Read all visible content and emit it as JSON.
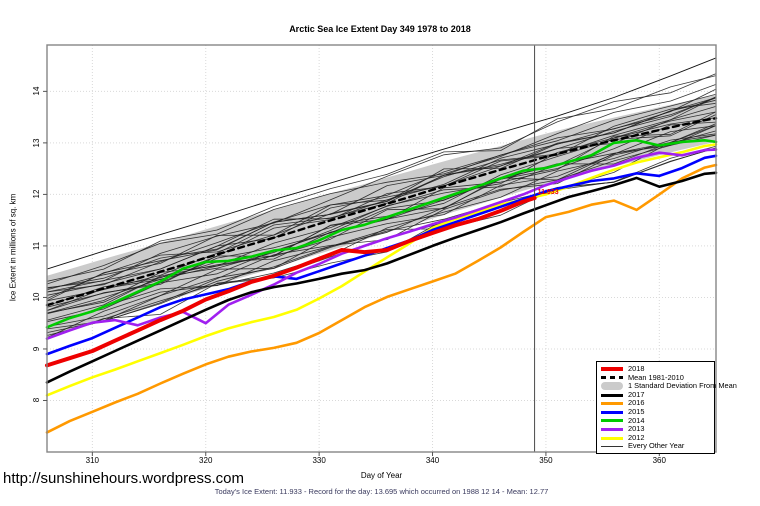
{
  "title": "Arctic Sea Ice Extent Day 349 1978 to 2018",
  "axes": {
    "x_label": "Day of Year",
    "y_label": "Ice Extent in millions of sq. km",
    "x_ticks": [
      310,
      320,
      330,
      340,
      350,
      360
    ],
    "y_ticks": [
      8,
      9,
      10,
      11,
      12,
      13,
      14
    ]
  },
  "annotation": {
    "day": 349,
    "value_label": "11.933",
    "color": "#ee0000"
  },
  "footer": {
    "url": "http://sunshinehours.wordpress.com",
    "note": "Today's Ice Extent: 11.933  - Record for the day: 13.695 which occurred on 1988 12 14  - Mean: 12.77"
  },
  "legend": {
    "items": [
      {
        "label": "2018",
        "color": "#ee0000",
        "type": "line",
        "thickness": 4
      },
      {
        "label": "Mean 1981-2010",
        "color": "#000000",
        "type": "dashed",
        "thickness": 3
      },
      {
        "label": "1 Standard Deviation From Mean",
        "color": "#cbcbcb",
        "type": "band",
        "thickness": 8
      },
      {
        "label": "2017",
        "color": "#000000",
        "type": "line",
        "thickness": 3
      },
      {
        "label": "2016",
        "color": "#ff9900",
        "type": "line",
        "thickness": 3
      },
      {
        "label": "2015",
        "color": "#0000ff",
        "type": "line",
        "thickness": 3
      },
      {
        "label": "2014",
        "color": "#00cc00",
        "type": "line",
        "thickness": 3
      },
      {
        "label": "2013",
        "color": "#a020f0",
        "type": "line",
        "thickness": 3
      },
      {
        "label": "2012",
        "color": "#ffff00",
        "type": "line",
        "thickness": 3
      },
      {
        "label": "Every Other Year",
        "color": "#333333",
        "type": "line",
        "thickness": 1
      }
    ]
  },
  "chart_data": {
    "type": "line",
    "title": "Arctic Sea Ice Extent Day 349 1978 to 2018",
    "xlabel": "Day of Year",
    "ylabel": "Ice Extent in millions of sq. km",
    "x_domain": [
      306,
      365
    ],
    "y_domain": [
      7.0,
      14.9
    ],
    "grid": "dotted",
    "legend_position": "bottom-right",
    "marker_day": 349,
    "x": [
      306,
      308,
      310,
      312,
      314,
      316,
      318,
      320,
      322,
      324,
      326,
      328,
      330,
      332,
      334,
      336,
      338,
      340,
      342,
      344,
      346,
      348,
      350,
      352,
      354,
      356,
      358,
      360,
      362,
      364,
      365
    ],
    "band": {
      "name": "1 Standard Deviation From Mean",
      "color": "#cbcbcb",
      "upper": [
        10.42,
        10.55,
        10.68,
        10.81,
        10.93,
        11.06,
        11.19,
        11.32,
        11.45,
        11.57,
        11.7,
        11.82,
        11.96,
        12.08,
        12.2,
        12.33,
        12.45,
        12.58,
        12.7,
        12.82,
        12.94,
        13.06,
        13.18,
        13.29,
        13.39,
        13.49,
        13.59,
        13.69,
        13.79,
        13.88,
        13.93
      ],
      "lower": [
        9.23,
        9.36,
        9.5,
        9.63,
        9.76,
        9.9,
        10.03,
        10.17,
        10.31,
        10.44,
        10.57,
        10.71,
        10.85,
        10.98,
        11.12,
        11.26,
        11.39,
        11.53,
        11.67,
        11.8,
        11.94,
        12.07,
        12.2,
        12.32,
        12.43,
        12.54,
        12.65,
        12.76,
        12.87,
        12.97,
        13.02
      ]
    },
    "series": [
      {
        "name": "2018",
        "color": "#ee0000",
        "width": 4,
        "z": 10,
        "x": [
          306,
          308,
          310,
          312,
          314,
          316,
          318,
          320,
          322,
          324,
          326,
          328,
          330,
          332,
          334,
          336,
          338,
          340,
          342,
          344,
          346,
          348,
          349
        ],
        "values": [
          8.68,
          8.82,
          8.96,
          9.16,
          9.36,
          9.56,
          9.74,
          9.96,
          10.12,
          10.3,
          10.42,
          10.58,
          10.75,
          10.92,
          10.88,
          10.92,
          11.1,
          11.25,
          11.4,
          11.52,
          11.68,
          11.86,
          11.93
        ]
      },
      {
        "name": "Mean 1981-2010",
        "color": "#000000",
        "width": 2.4,
        "dash": "6,4.5",
        "z": 0,
        "values": [
          9.85,
          9.98,
          10.11,
          10.24,
          10.37,
          10.5,
          10.63,
          10.77,
          10.9,
          11.03,
          11.16,
          11.29,
          11.43,
          11.56,
          11.69,
          11.82,
          11.95,
          12.09,
          12.22,
          12.35,
          12.48,
          12.6,
          12.73,
          12.84,
          12.95,
          13.05,
          13.15,
          13.25,
          13.35,
          13.44,
          13.48
        ]
      },
      {
        "name": "2017",
        "color": "#000000",
        "width": 2.6,
        "z": 6,
        "values": [
          8.35,
          8.56,
          8.76,
          8.96,
          9.16,
          9.36,
          9.56,
          9.76,
          9.95,
          10.1,
          10.2,
          10.27,
          10.36,
          10.46,
          10.53,
          10.66,
          10.83,
          11.0,
          11.16,
          11.31,
          11.46,
          11.63,
          11.79,
          11.95,
          12.06,
          12.18,
          12.32,
          12.15,
          12.26,
          12.4,
          12.42
        ]
      },
      {
        "name": "2016",
        "color": "#ff9900",
        "width": 2.6,
        "z": 5,
        "values": [
          7.38,
          7.6,
          7.78,
          7.96,
          8.13,
          8.33,
          8.52,
          8.7,
          8.85,
          8.95,
          9.02,
          9.12,
          9.31,
          9.56,
          9.81,
          10.01,
          10.16,
          10.31,
          10.46,
          10.71,
          10.97,
          11.27,
          11.56,
          11.66,
          11.8,
          11.88,
          11.7,
          12.0,
          12.31,
          12.52,
          12.57
        ]
      },
      {
        "name": "2015",
        "color": "#0000ff",
        "width": 2.6,
        "z": 2,
        "values": [
          8.9,
          9.06,
          9.21,
          9.41,
          9.61,
          9.81,
          9.96,
          10.06,
          10.16,
          10.31,
          10.41,
          10.36,
          10.51,
          10.66,
          10.81,
          10.96,
          11.11,
          11.31,
          11.46,
          11.61,
          11.76,
          11.91,
          12.06,
          12.16,
          12.26,
          12.31,
          12.41,
          12.36,
          12.51,
          12.71,
          12.75
        ]
      },
      {
        "name": "2014",
        "color": "#00cc00",
        "width": 2.6,
        "z": 4,
        "values": [
          9.42,
          9.6,
          9.73,
          9.91,
          10.11,
          10.31,
          10.56,
          10.69,
          10.71,
          10.79,
          10.91,
          10.96,
          11.11,
          11.31,
          11.41,
          11.56,
          11.71,
          11.86,
          12.01,
          12.16,
          12.31,
          12.46,
          12.51,
          12.63,
          12.76,
          13.0,
          13.05,
          12.95,
          13.02,
          13.05,
          13.02
        ]
      },
      {
        "name": "2013",
        "color": "#a020f0",
        "width": 2.6,
        "z": 3,
        "values": [
          9.2,
          9.36,
          9.51,
          9.56,
          9.46,
          9.61,
          9.72,
          9.5,
          9.86,
          10.05,
          10.25,
          10.48,
          10.65,
          10.85,
          11.0,
          11.15,
          11.28,
          11.42,
          11.55,
          11.7,
          11.85,
          12.0,
          12.18,
          12.32,
          12.46,
          12.56,
          12.71,
          12.81,
          12.76,
          12.86,
          12.87
        ]
      },
      {
        "name": "2012",
        "color": "#ffff00",
        "width": 2.6,
        "z": 1,
        "values": [
          8.1,
          8.28,
          8.45,
          8.6,
          8.76,
          8.92,
          9.08,
          9.25,
          9.4,
          9.52,
          9.62,
          9.76,
          9.98,
          10.22,
          10.5,
          10.78,
          11.05,
          11.35,
          11.52,
          11.66,
          11.8,
          11.9,
          12.0,
          12.15,
          12.32,
          12.48,
          12.62,
          12.72,
          12.82,
          12.94,
          12.97
        ]
      }
    ],
    "x_coarse": [
      306,
      311,
      316,
      321,
      326,
      331,
      336,
      341,
      346,
      351,
      356,
      361,
      365
    ],
    "record_line": {
      "name": "1988 record year",
      "values": [
        10.55,
        10.9,
        11.22,
        11.55,
        11.9,
        12.22,
        12.55,
        12.88,
        13.2,
        13.52,
        13.88,
        14.3,
        14.65
      ]
    },
    "other_years": {
      "name": "Every Other Year",
      "count": 28,
      "start_range": [
        9.15,
        10.5
      ],
      "end_range": [
        12.9,
        14.55
      ],
      "wiggle": 0.38,
      "seed": 1013
    }
  }
}
